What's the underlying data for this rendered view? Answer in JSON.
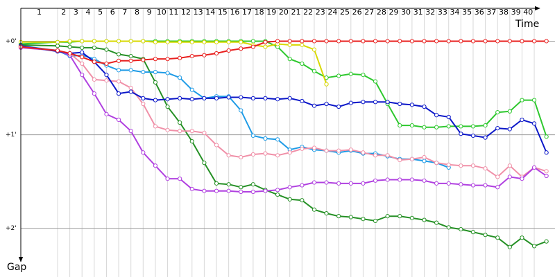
{
  "chart_data": {
    "type": "line",
    "x_title": "Time",
    "y_title": "Gap",
    "categories": [
      1,
      2,
      3,
      4,
      5,
      6,
      7,
      8,
      9,
      10,
      11,
      12,
      13,
      14,
      15,
      16,
      17,
      18,
      19,
      20,
      21,
      22,
      23,
      24,
      25,
      26,
      27,
      28,
      29,
      30,
      31,
      32,
      33,
      34,
      35,
      36,
      37,
      38,
      39,
      40
    ],
    "x": [
      0,
      1,
      2,
      3,
      4,
      5,
      6,
      7,
      8,
      9,
      10,
      11,
      12,
      13,
      14,
      15,
      16,
      17,
      18,
      19,
      20,
      21,
      22,
      23,
      24,
      25,
      26,
      27,
      28,
      29,
      30,
      31,
      32,
      33,
      34,
      35,
      36,
      37,
      38,
      39,
      40,
      41
    ],
    "xlim": [
      0,
      41.7
    ],
    "ylim": [
      -0.44,
      2.52
    ],
    "yticks": [
      {
        "value": 0,
        "label": "+0'"
      },
      {
        "value": 1,
        "label": "+1'"
      },
      {
        "value": 2,
        "label": "+2'"
      }
    ],
    "grid": true,
    "series": [
      {
        "color": "#2ec82e",
        "values": [
          0.03,
          0.01,
          0.01,
          0,
          0,
          0,
          0,
          0,
          0,
          0,
          0,
          0,
          0,
          0,
          0,
          0,
          0,
          0,
          0,
          0.06,
          0.19,
          0.24,
          0.32,
          0.39,
          0.37,
          0.35,
          0.36,
          0.43,
          0.67,
          0.9,
          0.9,
          0.92,
          0.92,
          0.91,
          0.91,
          0.91,
          0.9,
          0.76,
          0.75,
          0.63,
          0.63,
          1.02
        ]
      },
      {
        "color": "#d8d800",
        "values": [
          0.01,
          0.01,
          0,
          0,
          0,
          0,
          0,
          0,
          0,
          0.01,
          0.01,
          0.01,
          0.01,
          0.01,
          0.01,
          0.01,
          0.01,
          0.04,
          0.06,
          0.03,
          0.04,
          0.04,
          0.09,
          0.46,
          null,
          null,
          null,
          null,
          null,
          null,
          null,
          null,
          null,
          null,
          null,
          null,
          null,
          null,
          null,
          null,
          null,
          null
        ]
      },
      {
        "color": "#259025",
        "values": [
          0.04,
          0.05,
          0.06,
          0.07,
          0.07,
          0.09,
          0.14,
          0.16,
          0.19,
          0.44,
          0.7,
          0.87,
          1.07,
          1.3,
          1.52,
          1.53,
          1.56,
          1.53,
          1.59,
          1.64,
          1.69,
          1.7,
          1.8,
          1.84,
          1.87,
          1.88,
          1.9,
          1.92,
          1.87,
          1.87,
          1.89,
          1.91,
          1.94,
          1.99,
          2.01,
          2.04,
          2.07,
          2.1,
          2.2,
          2.1,
          2.19,
          2.14
        ]
      },
      {
        "color": "#1e9be6",
        "values": [
          0.05,
          0.1,
          0.16,
          0.15,
          0.19,
          0.26,
          0.31,
          0.31,
          0.33,
          0.33,
          0.34,
          0.39,
          0.52,
          0.61,
          0.59,
          0.59,
          0.74,
          1.01,
          1.04,
          1.05,
          1.16,
          1.13,
          1.16,
          1.17,
          1.19,
          1.17,
          1.2,
          1.2,
          1.23,
          1.26,
          1.26,
          1.28,
          1.3,
          1.35,
          null,
          null,
          null,
          null,
          null,
          null,
          null,
          null
        ]
      },
      {
        "color": "#f090a8",
        "values": [
          0.06,
          0.1,
          0.13,
          0.24,
          0.41,
          0.42,
          0.43,
          0.5,
          0.67,
          0.91,
          0.95,
          0.96,
          0.96,
          0.98,
          1.11,
          1.22,
          1.24,
          1.21,
          1.2,
          1.22,
          1.19,
          1.15,
          1.14,
          1.17,
          1.17,
          1.16,
          1.19,
          1.22,
          1.22,
          1.27,
          1.26,
          1.24,
          1.3,
          1.32,
          1.33,
          1.33,
          1.36,
          1.45,
          1.33,
          1.45,
          1.35,
          1.39
        ]
      },
      {
        "color": "#b040e0",
        "values": [
          0.07,
          0.1,
          0.15,
          0.36,
          0.56,
          0.78,
          0.84,
          0.96,
          1.19,
          1.33,
          1.47,
          1.47,
          1.58,
          1.6,
          1.6,
          1.6,
          1.61,
          1.61,
          1.6,
          1.59,
          1.56,
          1.54,
          1.51,
          1.51,
          1.52,
          1.52,
          1.52,
          1.49,
          1.48,
          1.48,
          1.48,
          1.49,
          1.52,
          1.52,
          1.53,
          1.54,
          1.54,
          1.56,
          1.45,
          1.47,
          1.35,
          1.44
        ]
      },
      {
        "color": "#0a16c8",
        "values": [
          0.05,
          0.11,
          0.13,
          0.12,
          0.22,
          0.36,
          0.56,
          0.54,
          0.61,
          0.63,
          0.62,
          0.61,
          0.62,
          0.61,
          0.61,
          0.6,
          0.6,
          0.61,
          0.61,
          0.62,
          0.61,
          0.64,
          0.69,
          0.67,
          0.7,
          0.66,
          0.65,
          0.65,
          0.65,
          0.67,
          0.68,
          0.7,
          0.79,
          0.81,
          0.99,
          1.01,
          1.03,
          0.93,
          0.94,
          0.84,
          0.88,
          1.19
        ]
      },
      {
        "color": "#e8201f",
        "values": [
          0.06,
          0.1,
          0.13,
          0.17,
          0.22,
          0.24,
          0.21,
          0.21,
          0.2,
          0.19,
          0.19,
          0.18,
          0.16,
          0.15,
          0.13,
          0.1,
          0.08,
          0.06,
          0.01,
          0,
          0,
          0,
          0,
          0,
          0,
          0,
          0,
          0,
          0,
          0,
          0,
          0,
          0,
          0,
          0,
          0,
          0,
          0,
          0,
          0,
          0,
          0
        ]
      }
    ]
  }
}
